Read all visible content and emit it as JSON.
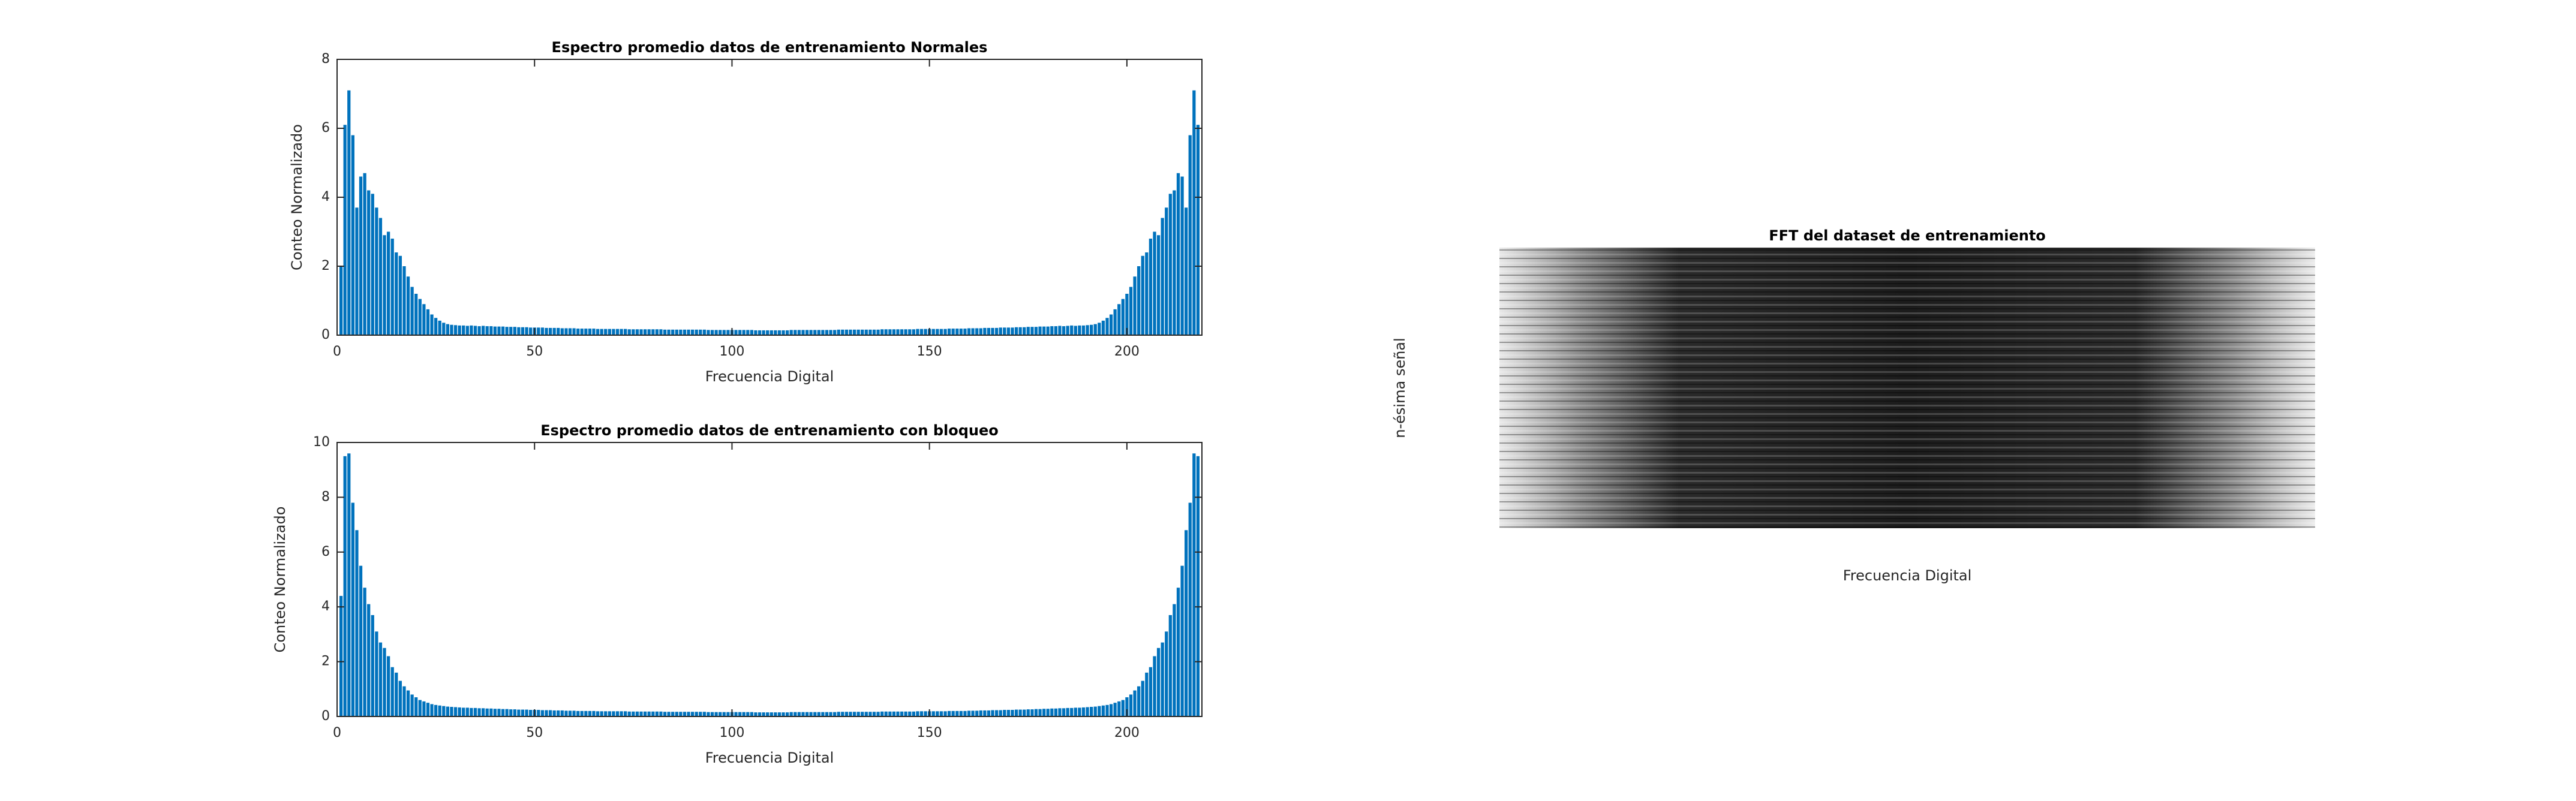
{
  "chart_data": [
    {
      "type": "bar",
      "title": "Espectro promedio datos de entrenamiento Normales",
      "xlabel": "Frecuencia Digital",
      "ylabel": "Conteo Normalizado",
      "color": "#0072bd",
      "xlim": [
        0,
        219
      ],
      "xticks": [
        0,
        50,
        100,
        150,
        200
      ],
      "ylim": [
        0,
        8
      ],
      "yticks": [
        0,
        2,
        4,
        6,
        8
      ],
      "x": [
        1,
        2,
        3,
        4,
        5,
        6,
        7,
        8,
        9,
        10,
        11,
        12,
        13,
        14,
        15,
        16,
        17,
        18,
        19,
        20,
        21,
        22,
        23,
        24,
        25,
        26,
        27,
        28,
        29,
        30,
        31,
        32,
        33,
        34,
        35,
        36,
        37,
        38,
        39,
        40,
        41,
        42,
        43,
        44,
        45,
        46,
        47,
        48,
        49,
        50,
        51,
        52,
        53,
        54,
        55,
        56,
        57,
        58,
        59,
        60,
        61,
        62,
        63,
        64,
        65,
        66,
        67,
        68,
        69,
        70,
        71,
        72,
        73,
        74,
        75,
        76,
        77,
        78,
        79,
        80,
        81,
        82,
        83,
        84,
        85,
        86,
        87,
        88,
        89,
        90,
        91,
        92,
        93,
        94,
        95,
        96,
        97,
        98,
        99,
        100,
        101,
        102,
        103,
        104,
        105,
        106,
        107,
        108,
        109,
        110,
        111,
        112,
        113,
        114,
        115,
        116,
        117,
        118,
        119,
        120,
        121,
        122,
        123,
        124,
        125,
        126,
        127,
        128,
        129,
        130,
        131,
        132,
        133,
        134,
        135,
        136,
        137,
        138,
        139,
        140,
        141,
        142,
        143,
        144,
        145,
        146,
        147,
        148,
        149,
        150,
        151,
        152,
        153,
        154,
        155,
        156,
        157,
        158,
        159,
        160,
        161,
        162,
        163,
        164,
        165,
        166,
        167,
        168,
        169,
        170,
        171,
        172,
        173,
        174,
        175,
        176,
        177,
        178,
        179,
        180,
        181,
        182,
        183,
        184,
        185,
        186,
        187,
        188,
        189,
        190,
        191,
        192,
        193,
        194,
        195,
        196,
        197,
        198,
        199,
        200,
        201,
        202,
        203,
        204,
        205,
        206,
        207,
        208,
        209,
        210,
        211,
        212,
        213,
        214,
        215,
        216,
        217,
        218
      ],
      "values": [
        2.0,
        6.1,
        7.1,
        5.8,
        3.7,
        4.6,
        4.7,
        4.2,
        4.1,
        3.7,
        3.4,
        2.9,
        3.0,
        2.8,
        2.4,
        2.3,
        2.0,
        1.7,
        1.4,
        1.2,
        1.05,
        0.9,
        0.75,
        0.6,
        0.5,
        0.42,
        0.36,
        0.32,
        0.3,
        0.29,
        0.28,
        0.28,
        0.27,
        0.28,
        0.27,
        0.26,
        0.27,
        0.26,
        0.26,
        0.25,
        0.25,
        0.25,
        0.24,
        0.24,
        0.24,
        0.23,
        0.23,
        0.23,
        0.22,
        0.22,
        0.22,
        0.22,
        0.21,
        0.21,
        0.21,
        0.21,
        0.2,
        0.2,
        0.2,
        0.2,
        0.19,
        0.19,
        0.19,
        0.19,
        0.19,
        0.18,
        0.18,
        0.18,
        0.18,
        0.18,
        0.18,
        0.18,
        0.18,
        0.17,
        0.17,
        0.17,
        0.17,
        0.17,
        0.17,
        0.17,
        0.17,
        0.17,
        0.16,
        0.16,
        0.16,
        0.16,
        0.16,
        0.16,
        0.16,
        0.16,
        0.16,
        0.16,
        0.16,
        0.15,
        0.15,
        0.15,
        0.15,
        0.15,
        0.15,
        0.15,
        0.15,
        0.15,
        0.15,
        0.15,
        0.15,
        0.14,
        0.14,
        0.14,
        0.14,
        0.14,
        0.14,
        0.14,
        0.14,
        0.14,
        0.15,
        0.15,
        0.15,
        0.15,
        0.15,
        0.15,
        0.15,
        0.15,
        0.15,
        0.15,
        0.15,
        0.15,
        0.16,
        0.16,
        0.16,
        0.16,
        0.16,
        0.16,
        0.16,
        0.16,
        0.16,
        0.16,
        0.16,
        0.17,
        0.17,
        0.17,
        0.17,
        0.17,
        0.17,
        0.17,
        0.17,
        0.17,
        0.18,
        0.18,
        0.18,
        0.18,
        0.18,
        0.18,
        0.18,
        0.18,
        0.19,
        0.19,
        0.19,
        0.19,
        0.19,
        0.2,
        0.2,
        0.2,
        0.2,
        0.21,
        0.21,
        0.21,
        0.21,
        0.22,
        0.22,
        0.22,
        0.22,
        0.23,
        0.23,
        0.23,
        0.24,
        0.24,
        0.24,
        0.25,
        0.25,
        0.25,
        0.26,
        0.26,
        0.27,
        0.26,
        0.27,
        0.28,
        0.27,
        0.28,
        0.28,
        0.29,
        0.3,
        0.32,
        0.36,
        0.42,
        0.5,
        0.6,
        0.75,
        0.9,
        1.05,
        1.2,
        1.4,
        1.7,
        2.0,
        2.3,
        2.4,
        2.8,
        3.0,
        2.9,
        3.4,
        3.7,
        4.1,
        4.2,
        4.7,
        4.6,
        3.7,
        5.8,
        7.1,
        6.1
      ]
    },
    {
      "type": "bar",
      "title": "Espectro promedio datos de entrenamiento con bloqueo",
      "xlabel": "Frecuencia Digital",
      "ylabel": "Conteo Normalizado",
      "color": "#0072bd",
      "xlim": [
        0,
        219
      ],
      "xticks": [
        0,
        50,
        100,
        150,
        200
      ],
      "ylim": [
        0,
        10
      ],
      "yticks": [
        0,
        2,
        4,
        6,
        8,
        10
      ],
      "x": [
        1,
        2,
        3,
        4,
        5,
        6,
        7,
        8,
        9,
        10,
        11,
        12,
        13,
        14,
        15,
        16,
        17,
        18,
        19,
        20,
        21,
        22,
        23,
        24,
        25,
        26,
        27,
        28,
        29,
        30,
        31,
        32,
        33,
        34,
        35,
        36,
        37,
        38,
        39,
        40,
        41,
        42,
        43,
        44,
        45,
        46,
        47,
        48,
        49,
        50,
        51,
        52,
        53,
        54,
        55,
        56,
        57,
        58,
        59,
        60,
        61,
        62,
        63,
        64,
        65,
        66,
        67,
        68,
        69,
        70,
        71,
        72,
        73,
        74,
        75,
        76,
        77,
        78,
        79,
        80,
        81,
        82,
        83,
        84,
        85,
        86,
        87,
        88,
        89,
        90,
        91,
        92,
        93,
        94,
        95,
        96,
        97,
        98,
        99,
        100,
        101,
        102,
        103,
        104,
        105,
        106,
        107,
        108,
        109,
        110,
        111,
        112,
        113,
        114,
        115,
        116,
        117,
        118,
        119,
        120,
        121,
        122,
        123,
        124,
        125,
        126,
        127,
        128,
        129,
        130,
        131,
        132,
        133,
        134,
        135,
        136,
        137,
        138,
        139,
        140,
        141,
        142,
        143,
        144,
        145,
        146,
        147,
        148,
        149,
        150,
        151,
        152,
        153,
        154,
        155,
        156,
        157,
        158,
        159,
        160,
        161,
        162,
        163,
        164,
        165,
        166,
        167,
        168,
        169,
        170,
        171,
        172,
        173,
        174,
        175,
        176,
        177,
        178,
        179,
        180,
        181,
        182,
        183,
        184,
        185,
        186,
        187,
        188,
        189,
        190,
        191,
        192,
        193,
        194,
        195,
        196,
        197,
        198,
        199,
        200,
        201,
        202,
        203,
        204,
        205,
        206,
        207,
        208,
        209,
        210,
        211,
        212,
        213,
        214,
        215,
        216,
        217,
        218
      ],
      "values": [
        4.4,
        9.5,
        9.6,
        7.8,
        6.8,
        5.5,
        4.7,
        4.1,
        3.7,
        3.1,
        2.7,
        2.5,
        2.2,
        1.8,
        1.6,
        1.3,
        1.1,
        0.95,
        0.8,
        0.7,
        0.6,
        0.55,
        0.5,
        0.45,
        0.42,
        0.4,
        0.38,
        0.36,
        0.35,
        0.34,
        0.33,
        0.32,
        0.32,
        0.31,
        0.31,
        0.3,
        0.3,
        0.29,
        0.29,
        0.28,
        0.28,
        0.27,
        0.27,
        0.26,
        0.26,
        0.25,
        0.25,
        0.25,
        0.24,
        0.24,
        0.24,
        0.23,
        0.23,
        0.23,
        0.22,
        0.22,
        0.22,
        0.21,
        0.21,
        0.21,
        0.2,
        0.2,
        0.2,
        0.2,
        0.2,
        0.19,
        0.19,
        0.19,
        0.19,
        0.19,
        0.19,
        0.19,
        0.19,
        0.18,
        0.18,
        0.18,
        0.18,
        0.18,
        0.18,
        0.18,
        0.18,
        0.18,
        0.17,
        0.17,
        0.17,
        0.17,
        0.17,
        0.17,
        0.17,
        0.17,
        0.17,
        0.17,
        0.17,
        0.16,
        0.16,
        0.16,
        0.16,
        0.16,
        0.16,
        0.16,
        0.16,
        0.16,
        0.16,
        0.16,
        0.16,
        0.15,
        0.15,
        0.15,
        0.15,
        0.15,
        0.15,
        0.15,
        0.15,
        0.15,
        0.16,
        0.16,
        0.16,
        0.16,
        0.16,
        0.16,
        0.16,
        0.16,
        0.16,
        0.16,
        0.16,
        0.16,
        0.17,
        0.17,
        0.17,
        0.17,
        0.17,
        0.17,
        0.17,
        0.17,
        0.17,
        0.17,
        0.17,
        0.18,
        0.18,
        0.18,
        0.18,
        0.18,
        0.18,
        0.18,
        0.18,
        0.18,
        0.19,
        0.19,
        0.19,
        0.19,
        0.19,
        0.19,
        0.19,
        0.19,
        0.2,
        0.2,
        0.2,
        0.2,
        0.2,
        0.21,
        0.21,
        0.21,
        0.22,
        0.22,
        0.22,
        0.23,
        0.23,
        0.23,
        0.24,
        0.24,
        0.24,
        0.25,
        0.25,
        0.25,
        0.26,
        0.26,
        0.27,
        0.27,
        0.28,
        0.28,
        0.29,
        0.29,
        0.3,
        0.3,
        0.31,
        0.31,
        0.32,
        0.32,
        0.33,
        0.34,
        0.35,
        0.36,
        0.38,
        0.4,
        0.42,
        0.45,
        0.5,
        0.55,
        0.6,
        0.7,
        0.8,
        0.95,
        1.1,
        1.3,
        1.6,
        1.8,
        2.2,
        2.5,
        2.7,
        3.1,
        3.7,
        4.1,
        4.7,
        5.5,
        6.8,
        7.8,
        9.6,
        9.5
      ]
    },
    {
      "type": "image",
      "title": "FFT del dataset de entrenamiento",
      "xlabel": "Frecuencia Digital",
      "ylabel": "n-ésima señal"
    }
  ]
}
